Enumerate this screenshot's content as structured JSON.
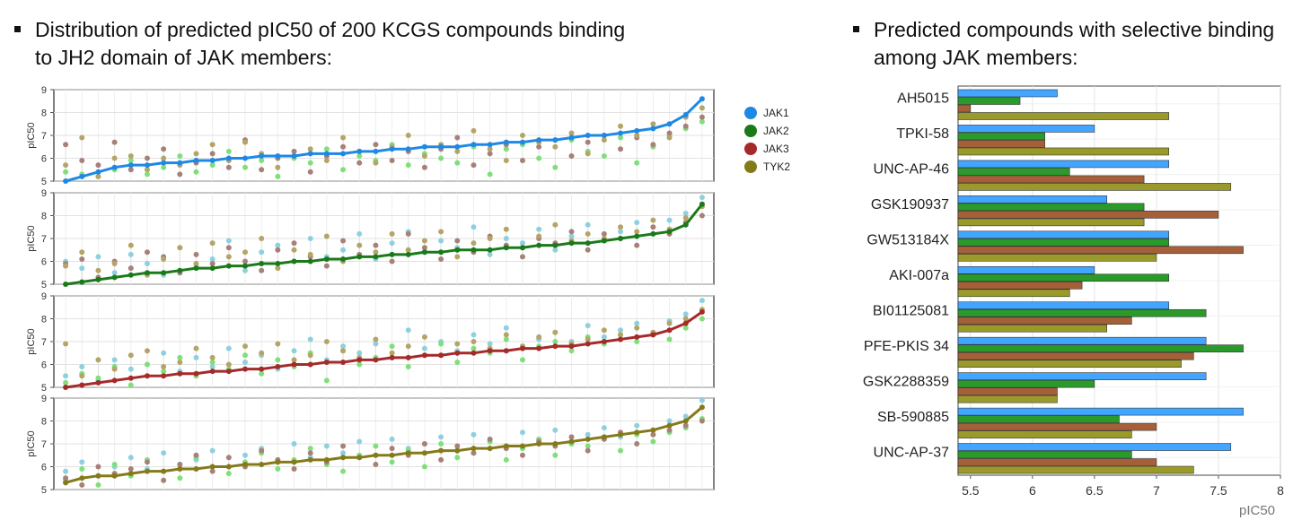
{
  "headings": {
    "left": "Distribution of predicted pIC50 of 200 KCGS compounds binding to JH2 domain of JAK members:",
    "right": "Predicted compounds with selective binding among  JAK members:"
  },
  "colors": {
    "JAK1": "#1e88e5",
    "JAK2": "#1a7a1a",
    "JAK3": "#a52a2a",
    "TYK2": "#857a1a",
    "JAK1_light": "#8fd0e0",
    "JAK2_light": "#7fe07a",
    "JAK3_light": "#a8807a",
    "TYK2_light": "#b5a468",
    "bar_JAK1": "#42a5ff",
    "bar_JAK2": "#2a9a2a",
    "bar_JAK3": "#a5603a",
    "bar_TYK2": "#9a9a2a"
  },
  "chart_data": [
    {
      "type": "scatter",
      "title": "",
      "ylabel": "pIC50",
      "ylim": [
        5,
        9
      ],
      "yticks": [
        "5",
        "6",
        "7",
        "8",
        "9"
      ],
      "grid": true,
      "legend": {
        "placement": "right",
        "entries": [
          "JAK1",
          "JAK2",
          "JAK3",
          "TYK2"
        ]
      },
      "panels": [
        {
          "sorted_by": "JAK1",
          "series": {
            "JAK1": [
              5.0,
              5.2,
              5.4,
              5.6,
              5.7,
              5.7,
              5.8,
              5.8,
              5.9,
              5.9,
              6.0,
              6.0,
              6.1,
              6.1,
              6.1,
              6.2,
              6.2,
              6.2,
              6.3,
              6.3,
              6.4,
              6.4,
              6.5,
              6.5,
              6.5,
              6.6,
              6.6,
              6.7,
              6.7,
              6.8,
              6.8,
              6.9,
              7.0,
              7.0,
              7.1,
              7.2,
              7.3,
              7.5,
              7.9,
              8.6
            ],
            "JAK2": [
              5.4,
              5.3,
              5.2,
              5.5,
              5.9,
              5.3,
              5.6,
              6.1,
              5.4,
              5.7,
              6.3,
              5.6,
              5.9,
              5.2,
              6.0,
              5.8,
              6.4,
              5.5,
              6.1,
              5.9,
              6.6,
              5.7,
              6.2,
              6.0,
              5.8,
              6.5,
              5.3,
              6.4,
              6.6,
              6.0,
              5.6,
              6.8,
              6.3,
              6.1,
              6.9,
              5.8,
              6.5,
              7.0,
              7.3,
              7.6
            ],
            "JAK3": [
              6.6,
              5.9,
              5.7,
              6.7,
              5.5,
              6.0,
              6.4,
              5.3,
              5.8,
              6.2,
              5.6,
              6.8,
              5.5,
              6.0,
              6.3,
              5.4,
              6.1,
              6.5,
              5.8,
              6.6,
              5.9,
              6.3,
              5.6,
              6.4,
              6.9,
              5.7,
              6.2,
              6.6,
              5.9,
              6.5,
              6.8,
              6.1,
              6.7,
              7.0,
              6.4,
              6.9,
              6.6,
              7.1,
              7.4,
              7.8
            ],
            "TYK2": [
              5.7,
              6.9,
              5.2,
              6.0,
              6.1,
              5.5,
              6.0,
              5.7,
              6.2,
              6.6,
              5.9,
              6.7,
              6.2,
              5.6,
              6.1,
              6.4,
              5.9,
              6.9,
              6.3,
              5.8,
              6.5,
              7.0,
              6.1,
              6.6,
              6.3,
              7.2,
              6.4,
              5.9,
              7.0,
              6.7,
              6.5,
              7.1,
              6.2,
              6.8,
              7.4,
              7.0,
              7.5,
              6.9,
              7.8,
              8.2
            ]
          }
        },
        {
          "sorted_by": "JAK2",
          "series": {
            "JAK1": [
              6.0,
              5.7,
              6.2,
              5.5,
              6.3,
              5.9,
              5.4,
              6.6,
              5.8,
              6.1,
              6.9,
              5.6,
              6.4,
              6.7,
              6.0,
              7.0,
              6.2,
              6.5,
              7.2,
              6.1,
              6.8,
              7.3,
              6.4,
              6.9,
              6.6,
              7.5,
              6.3,
              7.0,
              6.8,
              7.4,
              6.5,
              7.1,
              7.6,
              6.9,
              7.3,
              7.7,
              7.2,
              7.8,
              8.1,
              8.8
            ],
            "JAK2": [
              5.0,
              5.1,
              5.2,
              5.3,
              5.4,
              5.5,
              5.5,
              5.6,
              5.7,
              5.7,
              5.8,
              5.8,
              5.9,
              5.9,
              6.0,
              6.0,
              6.1,
              6.1,
              6.2,
              6.2,
              6.3,
              6.3,
              6.4,
              6.4,
              6.5,
              6.5,
              6.5,
              6.6,
              6.6,
              6.7,
              6.7,
              6.8,
              6.8,
              6.9,
              7.0,
              7.1,
              7.2,
              7.3,
              7.6,
              8.5
            ],
            "JAK3": [
              5.9,
              6.1,
              5.3,
              6.0,
              5.7,
              6.4,
              6.2,
              5.5,
              6.3,
              5.9,
              6.6,
              6.0,
              5.6,
              6.5,
              6.8,
              6.2,
              5.8,
              6.9,
              6.3,
              6.7,
              6.0,
              7.2,
              6.6,
              6.1,
              6.9,
              6.4,
              7.1,
              6.7,
              6.2,
              7.0,
              6.8,
              7.3,
              6.5,
              7.2,
              7.0,
              6.7,
              7.5,
              7.2,
              7.7,
              8.0
            ],
            "TYK2": [
              5.8,
              6.4,
              5.6,
              5.9,
              6.7,
              5.4,
              6.1,
              6.6,
              5.9,
              6.8,
              6.2,
              6.4,
              7.0,
              5.7,
              6.5,
              6.3,
              7.1,
              6.0,
              6.7,
              6.4,
              7.2,
              6.5,
              6.9,
              7.3,
              6.2,
              6.8,
              7.0,
              7.4,
              6.6,
              7.1,
              7.6,
              6.9,
              7.2,
              7.0,
              7.5,
              7.3,
              7.8,
              7.4,
              7.9,
              8.4
            ]
          }
        },
        {
          "sorted_by": "JAK3",
          "series": {
            "JAK1": [
              5.5,
              5.9,
              5.3,
              6.2,
              5.8,
              6.0,
              6.5,
              5.7,
              6.3,
              5.9,
              6.7,
              6.1,
              6.4,
              5.8,
              6.6,
              7.1,
              6.2,
              6.8,
              6.5,
              6.9,
              6.3,
              7.5,
              6.7,
              7.0,
              6.6,
              7.3,
              6.9,
              7.6,
              6.8,
              7.1,
              7.4,
              7.0,
              7.7,
              7.2,
              7.5,
              7.8,
              7.3,
              7.9,
              8.2,
              8.8
            ],
            "JAK2": [
              5.2,
              5.6,
              5.4,
              5.9,
              5.1,
              6.0,
              5.7,
              6.3,
              5.5,
              6.1,
              5.8,
              6.4,
              5.6,
              6.2,
              5.9,
              6.5,
              5.3,
              6.6,
              6.0,
              6.3,
              6.8,
              5.9,
              6.4,
              6.9,
              6.1,
              6.7,
              6.5,
              7.1,
              6.2,
              6.8,
              7.0,
              6.6,
              7.2,
              6.9,
              7.3,
              7.0,
              7.4,
              7.1,
              7.6,
              8.0
            ],
            "JAK3": [
              5.0,
              5.1,
              5.2,
              5.3,
              5.4,
              5.5,
              5.5,
              5.6,
              5.6,
              5.7,
              5.7,
              5.8,
              5.8,
              5.9,
              6.0,
              6.0,
              6.1,
              6.1,
              6.2,
              6.2,
              6.3,
              6.3,
              6.4,
              6.4,
              6.5,
              6.5,
              6.6,
              6.6,
              6.7,
              6.7,
              6.8,
              6.8,
              6.9,
              7.0,
              7.1,
              7.2,
              7.3,
              7.5,
              7.8,
              8.3
            ],
            "TYK2": [
              6.9,
              5.5,
              6.2,
              5.8,
              6.4,
              6.6,
              5.9,
              6.1,
              6.7,
              6.3,
              6.0,
              6.8,
              6.5,
              6.9,
              6.2,
              6.4,
              7.0,
              6.6,
              6.3,
              7.1,
              6.5,
              6.8,
              7.2,
              6.4,
              6.9,
              7.0,
              6.7,
              7.3,
              6.8,
              7.2,
              7.4,
              6.9,
              7.1,
              7.5,
              7.3,
              7.6,
              7.4,
              7.8,
              8.0,
              8.4
            ]
          }
        },
        {
          "sorted_by": "TYK2",
          "series": {
            "JAK1": [
              5.8,
              6.2,
              5.6,
              6.0,
              6.4,
              5.9,
              6.6,
              6.1,
              6.3,
              6.7,
              6.0,
              6.5,
              6.8,
              6.2,
              7.0,
              6.4,
              6.9,
              6.6,
              7.1,
              6.5,
              7.2,
              6.8,
              7.0,
              7.3,
              6.7,
              7.4,
              7.1,
              6.9,
              7.5,
              7.2,
              7.6,
              7.0,
              7.4,
              7.7,
              7.3,
              7.8,
              7.6,
              8.0,
              8.2,
              8.9
            ],
            "JAK2": [
              5.4,
              5.9,
              5.2,
              6.1,
              5.6,
              6.3,
              5.8,
              5.5,
              6.4,
              6.0,
              5.7,
              6.2,
              6.6,
              5.9,
              6.3,
              6.8,
              6.1,
              5.8,
              6.5,
              6.9,
              6.2,
              6.7,
              6.0,
              7.0,
              6.4,
              6.6,
              7.1,
              6.3,
              6.8,
              7.2,
              6.5,
              7.0,
              6.9,
              7.3,
              6.7,
              7.4,
              7.1,
              7.5,
              7.7,
              8.1
            ],
            "JAK3": [
              5.5,
              5.2,
              6.0,
              5.7,
              5.9,
              6.2,
              5.4,
              6.1,
              6.5,
              5.8,
              6.4,
              6.0,
              6.7,
              6.3,
              5.9,
              6.6,
              6.2,
              6.9,
              6.4,
              6.1,
              6.8,
              6.5,
              7.0,
              6.3,
              6.9,
              6.6,
              7.2,
              6.8,
              6.5,
              7.1,
              6.9,
              7.3,
              6.7,
              7.2,
              7.5,
              7.0,
              7.4,
              7.6,
              7.8,
              8.0
            ],
            "TYK2": [
              5.3,
              5.5,
              5.6,
              5.6,
              5.7,
              5.8,
              5.8,
              5.9,
              5.9,
              6.0,
              6.0,
              6.1,
              6.1,
              6.2,
              6.2,
              6.3,
              6.3,
              6.4,
              6.4,
              6.5,
              6.5,
              6.6,
              6.6,
              6.7,
              6.7,
              6.8,
              6.8,
              6.9,
              6.9,
              7.0,
              7.0,
              7.1,
              7.2,
              7.3,
              7.4,
              7.5,
              7.6,
              7.8,
              8.0,
              8.6
            ]
          }
        }
      ]
    },
    {
      "type": "bar",
      "orientation": "horizontal",
      "title": "",
      "xlabel": "pIC50",
      "xlim": [
        5.4,
        8
      ],
      "xticks": [
        "5.5",
        "6",
        "6.5",
        "7",
        "7.5",
        "8"
      ],
      "grid": true,
      "categories": [
        "AH5015",
        "TPKI-58",
        "UNC-AP-46",
        "GSK190937",
        "GW513184X",
        "AKI-007a",
        "BI01125081",
        "PFE-PKIS 34",
        "GSK2288359",
        "SB-590885",
        "UNC-AP-37"
      ],
      "series": [
        {
          "key": "JAK1",
          "values": [
            6.2,
            6.5,
            7.1,
            6.6,
            7.1,
            6.5,
            7.1,
            7.4,
            7.4,
            7.7,
            7.6
          ]
        },
        {
          "key": "JAK2",
          "values": [
            5.9,
            6.1,
            6.3,
            6.9,
            7.1,
            7.1,
            7.4,
            7.7,
            6.5,
            6.7,
            6.8
          ]
        },
        {
          "key": "JAK3",
          "values": [
            5.5,
            6.1,
            6.9,
            7.5,
            7.7,
            6.4,
            6.8,
            7.3,
            6.2,
            7.0,
            7.0
          ]
        },
        {
          "key": "TYK2",
          "values": [
            7.1,
            7.1,
            7.6,
            6.9,
            7.0,
            6.3,
            6.6,
            7.2,
            6.2,
            6.8,
            7.3
          ]
        }
      ]
    }
  ]
}
